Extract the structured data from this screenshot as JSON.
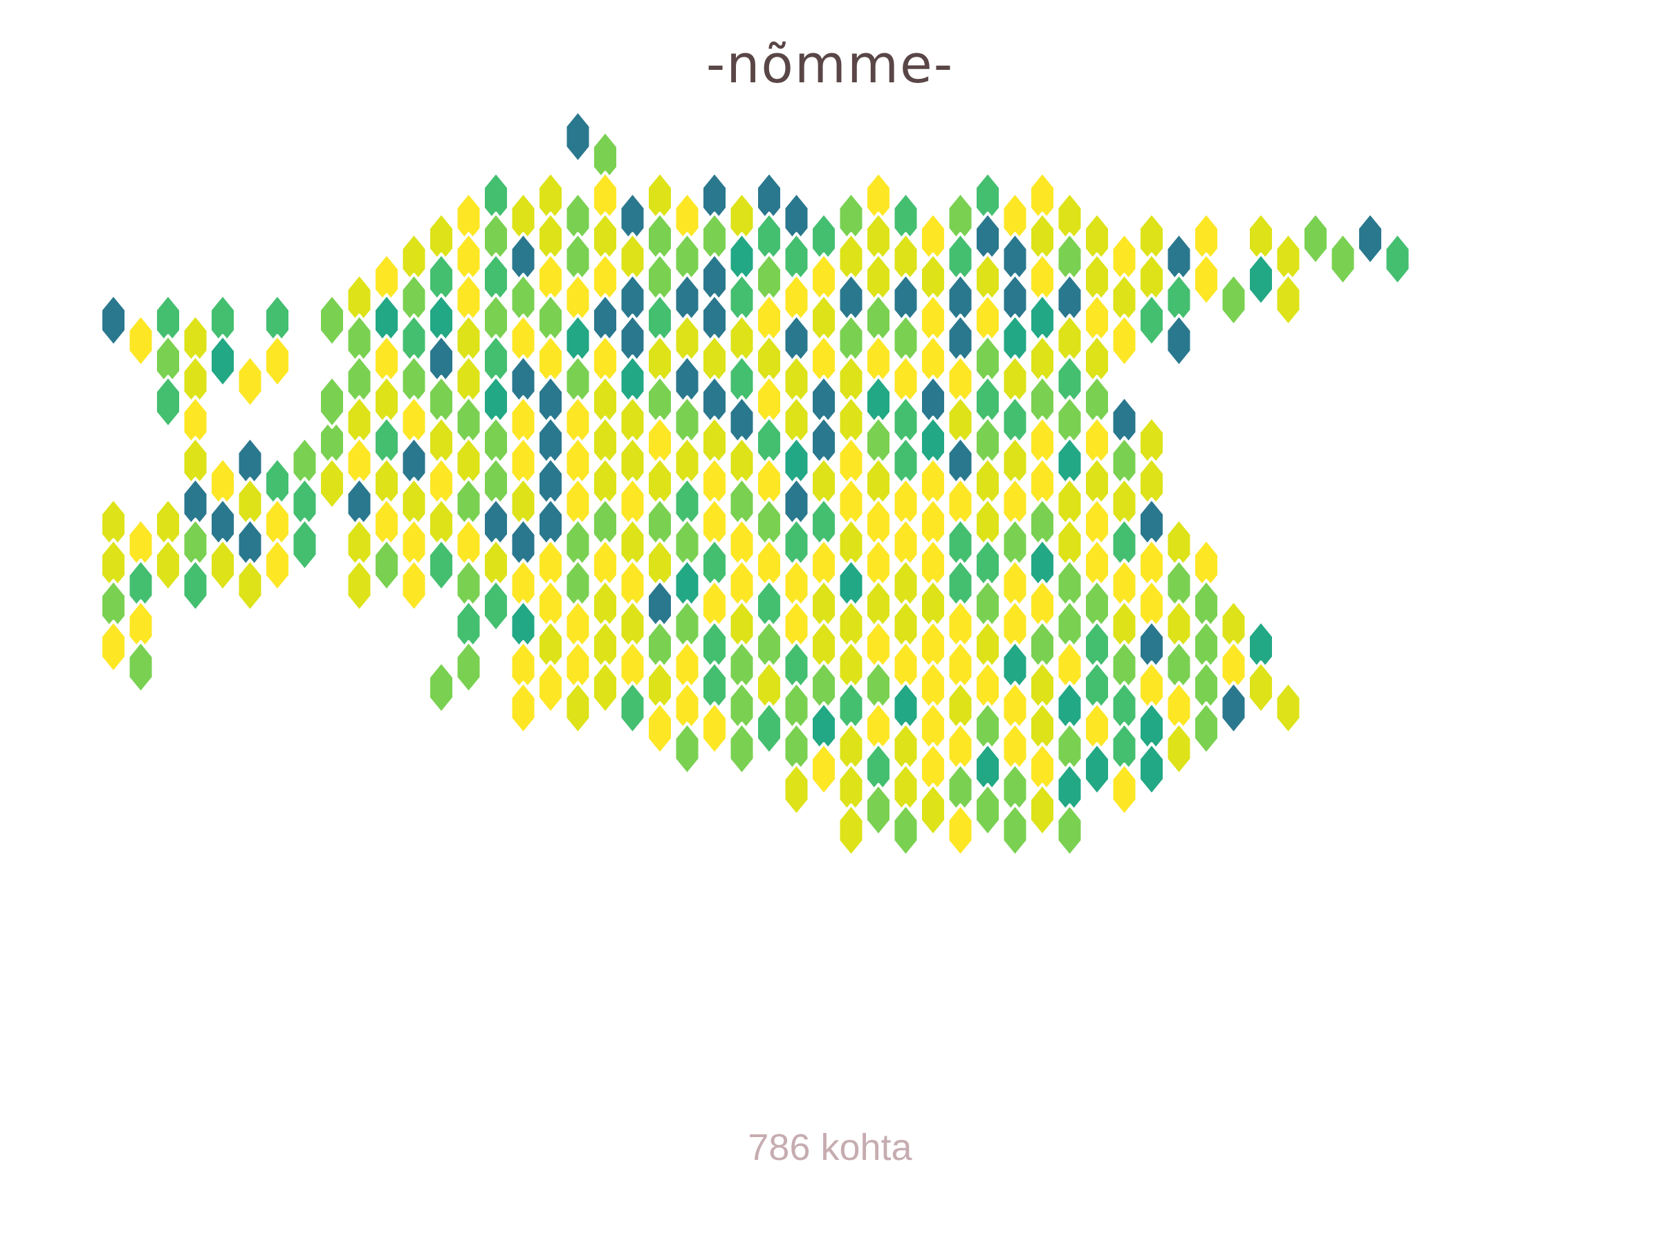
{
  "title": "-nõmme-",
  "count_label": "786 kohta",
  "map": {
    "type": "hex-grid choropleth",
    "region": "Estonia",
    "palette": [
      "#fde725",
      "#dde318",
      "#7ad151",
      "#44bf70",
      "#22a884",
      "#2a788e"
    ],
    "legend": "none"
  }
}
